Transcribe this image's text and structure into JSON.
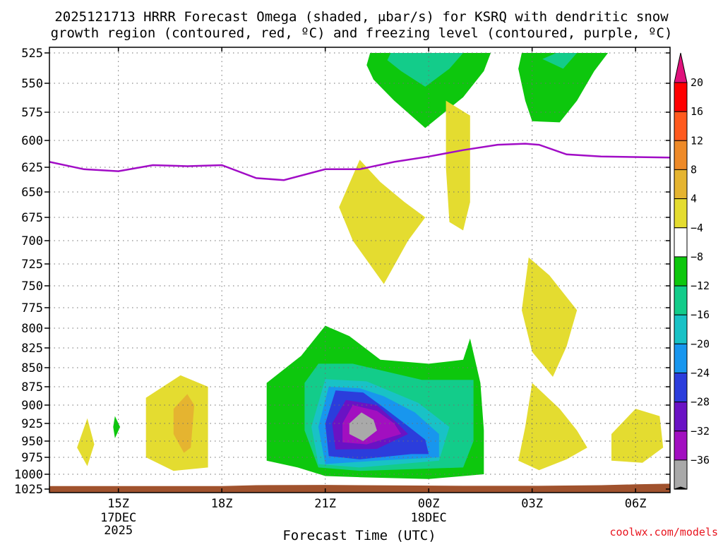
{
  "chart_data": {
    "type": "contour",
    "title_line1": "2025121713 HRRR Forecast Omega (shaded, μbar/s) for KSRQ with dendritic snow",
    "title_line2": "growth region (contoured, red, ºC) and freezing level (contoured, purple, ºC)",
    "xlabel": "Forecast Time (UTC)",
    "credit": "coolwx.com/models",
    "x_range_hours": [
      13,
      31
    ],
    "y_levels": [
      525,
      550,
      575,
      600,
      625,
      650,
      675,
      700,
      725,
      750,
      775,
      800,
      825,
      850,
      875,
      900,
      925,
      950,
      975,
      1000,
      1025
    ],
    "x_ticks": [
      {
        "hour": 15,
        "label": "15Z",
        "date": "17DEC",
        "year": "2025"
      },
      {
        "hour": 18,
        "label": "18Z",
        "date": "",
        "year": ""
      },
      {
        "hour": 21,
        "label": "21Z",
        "date": "",
        "year": ""
      },
      {
        "hour": 24,
        "label": "00Z",
        "date": "18DEC",
        "year": ""
      },
      {
        "hour": 27,
        "label": "03Z",
        "date": "",
        "year": ""
      },
      {
        "hour": 30,
        "label": "06Z",
        "date": "",
        "year": ""
      }
    ],
    "colorbar": {
      "labels": [
        "20",
        "16",
        "12",
        "8",
        "4",
        "−4",
        "−8",
        "−12",
        "−16",
        "−20",
        "−24",
        "−28",
        "−32",
        "−36"
      ],
      "colors": [
        "#ff0000",
        "#ff5a1e",
        "#ee8a28",
        "#e5b430",
        "#e4dc30",
        "#ffffff",
        "#0dc70d",
        "#13cc8a",
        "#19c2c6",
        "#1896ee",
        "#2b3ddc",
        "#6a12c4",
        "#a20fc0",
        "#a9a9a9"
      ],
      "top_arrow_color": "#e0127c",
      "bottom_arrow_color": "#000000"
    },
    "freezing_level_color": "#a10cc6",
    "freezing_level": {
      "hours": [
        13.0,
        14.0,
        15.0,
        16.0,
        17.0,
        18.0,
        19.0,
        19.8,
        21.0,
        22.0,
        23.0,
        24.0,
        25.0,
        26.0,
        26.8,
        27.2,
        28.0,
        29.0,
        31.0
      ],
      "pressure_hpa": [
        620,
        627,
        629,
        623,
        624,
        623,
        636,
        638,
        627,
        627,
        620,
        615,
        609,
        604,
        603,
        604,
        613,
        615,
        616
      ]
    },
    "ground_color": "#a0522d",
    "ground": {
      "hours": [
        13,
        18,
        19,
        21,
        22,
        25,
        27,
        29,
        30,
        31
      ],
      "pressure_hpa": [
        1020,
        1020,
        1018.5,
        1018,
        1018.5,
        1019.5,
        1019.5,
        1018.5,
        1017,
        1016
      ]
    },
    "omega_regions": [
      {
        "label": "−4",
        "color": "#0dc70d",
        "points": [
          [
            22.3,
            525
          ],
          [
            25.8,
            525
          ],
          [
            25.6,
            540
          ],
          [
            25.0,
            562
          ],
          [
            23.9,
            589
          ],
          [
            23.0,
            565
          ],
          [
            22.4,
            547
          ],
          [
            22.2,
            535
          ]
        ]
      },
      {
        "label": "−8",
        "color": "#13cc8a",
        "points": [
          [
            22.9,
            525
          ],
          [
            25.0,
            525
          ],
          [
            24.6,
            538
          ],
          [
            23.9,
            553
          ],
          [
            23.2,
            540
          ],
          [
            22.8,
            531
          ]
        ]
      },
      {
        "label": "−4",
        "color": "#0dc70d",
        "points": [
          [
            26.7,
            525
          ],
          [
            29.2,
            525
          ],
          [
            28.8,
            540
          ],
          [
            28.3,
            565
          ],
          [
            27.8,
            584
          ],
          [
            27.0,
            583
          ],
          [
            26.8,
            565
          ],
          [
            26.6,
            538
          ]
        ]
      },
      {
        "label": "−8",
        "color": "#13cc8a",
        "points": [
          [
            27.7,
            525
          ],
          [
            28.3,
            525
          ],
          [
            27.9,
            538
          ],
          [
            27.3,
            530
          ]
        ]
      },
      {
        "label": "4",
        "color": "#e4dc30",
        "points": [
          [
            24.5,
            565
          ],
          [
            25.2,
            578
          ],
          [
            25.2,
            620
          ],
          [
            25.2,
            660
          ],
          [
            25.0,
            689
          ],
          [
            24.6,
            680
          ],
          [
            24.5,
            625
          ]
        ]
      },
      {
        "label": "4",
        "color": "#e4dc30",
        "points": [
          [
            22.0,
            618
          ],
          [
            22.6,
            640
          ],
          [
            23.3,
            660
          ],
          [
            23.9,
            675
          ],
          [
            23.4,
            700
          ],
          [
            22.7,
            748
          ],
          [
            21.8,
            700
          ],
          [
            21.4,
            665
          ]
        ]
      },
      {
        "label": "4",
        "color": "#e4dc30",
        "points": [
          [
            26.9,
            718
          ],
          [
            27.5,
            738
          ],
          [
            28.3,
            778
          ],
          [
            28.0,
            823
          ],
          [
            27.6,
            862
          ],
          [
            27.0,
            830
          ],
          [
            26.7,
            778
          ]
        ]
      },
      {
        "label": "4",
        "color": "#e4dc30",
        "points": [
          [
            27.0,
            870
          ],
          [
            27.8,
            905
          ],
          [
            28.3,
            935
          ],
          [
            28.6,
            960
          ],
          [
            28.0,
            978
          ],
          [
            27.2,
            994
          ],
          [
            26.6,
            980
          ],
          [
            26.8,
            930
          ]
        ]
      },
      {
        "label": "4",
        "color": "#e4dc30",
        "points": [
          [
            30.0,
            905
          ],
          [
            30.7,
            915
          ],
          [
            30.8,
            960
          ],
          [
            30.2,
            983
          ],
          [
            29.3,
            980
          ],
          [
            29.3,
            940
          ]
        ]
      },
      {
        "label": "4",
        "color": "#e4dc30",
        "points": [
          [
            14.1,
            918
          ],
          [
            14.3,
            955
          ],
          [
            14.1,
            988
          ],
          [
            13.8,
            960
          ]
        ]
      },
      {
        "label": "−4",
        "color": "#0dc70d",
        "points": [
          [
            14.9,
            915
          ],
          [
            15.05,
            930
          ],
          [
            14.9,
            946
          ],
          [
            14.85,
            930
          ]
        ]
      },
      {
        "label": "4",
        "color": "#e4dc30",
        "points": [
          [
            16.8,
            860
          ],
          [
            17.6,
            875
          ],
          [
            17.6,
            990
          ],
          [
            16.6,
            995
          ],
          [
            15.8,
            975
          ],
          [
            15.8,
            890
          ]
        ]
      },
      {
        "label": "8",
        "color": "#e5b430",
        "points": [
          [
            17.0,
            885
          ],
          [
            17.2,
            900
          ],
          [
            17.1,
            960
          ],
          [
            16.9,
            968
          ],
          [
            16.6,
            940
          ],
          [
            16.6,
            905
          ]
        ]
      },
      {
        "label": "−4",
        "color": "#0dc70d",
        "points": [
          [
            21.0,
            797
          ],
          [
            21.7,
            810
          ],
          [
            22.6,
            840
          ],
          [
            24.0,
            845
          ],
          [
            25.0,
            840
          ],
          [
            25.2,
            813
          ],
          [
            25.5,
            870
          ],
          [
            25.6,
            935
          ],
          [
            25.6,
            1000
          ],
          [
            24.0,
            1008
          ],
          [
            22.0,
            1005
          ],
          [
            21.0,
            1003
          ],
          [
            20.2,
            990
          ],
          [
            19.3,
            980
          ],
          [
            19.3,
            870
          ],
          [
            20.3,
            835
          ]
        ]
      },
      {
        "label": "−8",
        "color": "#13cc8a",
        "points": [
          [
            20.8,
            845
          ],
          [
            21.8,
            845
          ],
          [
            23.8,
            866
          ],
          [
            25.3,
            866
          ],
          [
            25.3,
            950
          ],
          [
            25.0,
            990
          ],
          [
            22.0,
            995
          ],
          [
            20.8,
            990
          ],
          [
            20.4,
            935
          ],
          [
            20.4,
            870
          ]
        ]
      },
      {
        "label": "−12",
        "color": "#19c2c6",
        "points": [
          [
            21.0,
            865
          ],
          [
            22.2,
            868
          ],
          [
            23.7,
            897
          ],
          [
            24.6,
            930
          ],
          [
            24.3,
            980
          ],
          [
            22.0,
            990
          ],
          [
            20.8,
            985
          ],
          [
            20.6,
            930
          ]
        ]
      },
      {
        "label": "−16",
        "color": "#1896ee",
        "points": [
          [
            21.1,
            875
          ],
          [
            22.0,
            877
          ],
          [
            22.7,
            888
          ],
          [
            23.6,
            910
          ],
          [
            24.3,
            940
          ],
          [
            24.3,
            975
          ],
          [
            22.5,
            980
          ],
          [
            21.0,
            985
          ],
          [
            20.8,
            930
          ]
        ]
      },
      {
        "label": "−20",
        "color": "#2b3ddc",
        "points": [
          [
            21.3,
            880
          ],
          [
            22.1,
            883
          ],
          [
            22.6,
            900
          ],
          [
            23.3,
            925
          ],
          [
            23.9,
            948
          ],
          [
            24.0,
            970
          ],
          [
            23.5,
            970
          ],
          [
            22.0,
            978
          ],
          [
            21.1,
            973
          ],
          [
            21.0,
            925
          ]
        ]
      },
      {
        "label": "−24",
        "color": "#6a12c4",
        "points": [
          [
            21.6,
            893
          ],
          [
            22.5,
            900
          ],
          [
            23.1,
            925
          ],
          [
            23.4,
            940
          ],
          [
            22.5,
            962
          ],
          [
            21.3,
            963
          ],
          [
            21.2,
            925
          ]
        ]
      },
      {
        "label": "−28",
        "color": "#a20fc0",
        "points": [
          [
            21.8,
            900
          ],
          [
            22.5,
            908
          ],
          [
            23.0,
            925
          ],
          [
            23.2,
            940
          ],
          [
            22.2,
            955
          ],
          [
            21.5,
            952
          ],
          [
            21.5,
            925
          ]
        ]
      },
      {
        "label": "−32",
        "color": "#a9a9a9",
        "points": [
          [
            22.05,
            910
          ],
          [
            22.4,
            920
          ],
          [
            22.5,
            935
          ],
          [
            22.1,
            950
          ],
          [
            21.7,
            940
          ],
          [
            21.7,
            925
          ]
        ]
      }
    ]
  }
}
